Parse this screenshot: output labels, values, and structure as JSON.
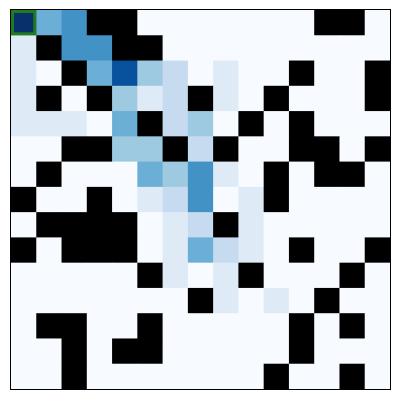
{
  "board": {
    "rows": 15,
    "cols": 15,
    "colors": {
      "wall": "#000000",
      "frame": "#000000",
      "agent_outline": "#1e7b1e",
      "heat_scale": [
        "#f7fbff",
        "#deebf7",
        "#c6dbef",
        "#9ecae1",
        "#6baed6",
        "#4292c6",
        "#2171b5",
        "#08519c",
        "#08306b"
      ]
    },
    "agent": {
      "row": 0,
      "col": 0
    },
    "heat_max": 8,
    "grid": [
      [
        8,
        4,
        5,
        -1,
        -1,
        0,
        0,
        0,
        0,
        0,
        0,
        0,
        -1,
        -1,
        0
      ],
      [
        1,
        -1,
        5,
        5,
        -1,
        -1,
        0,
        0,
        0,
        0,
        0,
        0,
        0,
        0,
        0
      ],
      [
        1,
        0,
        -1,
        4,
        7,
        3,
        2,
        0,
        1,
        0,
        0,
        -1,
        0,
        0,
        -1
      ],
      [
        1,
        -1,
        0,
        -1,
        3,
        1,
        2,
        -1,
        1,
        0,
        -1,
        0,
        0,
        0,
        -1
      ],
      [
        1,
        1,
        1,
        0,
        4,
        -1,
        2,
        3,
        0,
        -1,
        0,
        -1,
        0,
        0,
        0
      ],
      [
        0,
        0,
        -1,
        -1,
        3,
        3,
        -1,
        2,
        -1,
        0,
        0,
        -1,
        -1,
        0,
        -1
      ],
      [
        0,
        -1,
        0,
        0,
        0,
        4,
        3,
        5,
        1,
        0,
        -1,
        0,
        -1,
        -1,
        0
      ],
      [
        -1,
        0,
        0,
        -1,
        0,
        1,
        2,
        5,
        0,
        1,
        -1,
        0,
        0,
        0,
        0
      ],
      [
        0,
        -1,
        -1,
        -1,
        -1,
        0,
        1,
        2,
        -1,
        1,
        0,
        0,
        0,
        0,
        0
      ],
      [
        -1,
        0,
        -1,
        -1,
        -1,
        0,
        1,
        4,
        2,
        1,
        0,
        -1,
        0,
        0,
        -1
      ],
      [
        0,
        0,
        0,
        0,
        0,
        -1,
        1,
        0,
        1,
        -1,
        0,
        0,
        0,
        -1,
        0
      ],
      [
        0,
        0,
        0,
        0,
        0,
        0,
        0,
        -1,
        1,
        0,
        1,
        0,
        -1,
        0,
        0
      ],
      [
        0,
        -1,
        -1,
        0,
        0,
        -1,
        0,
        0,
        0,
        0,
        0,
        -1,
        0,
        -1,
        0
      ],
      [
        0,
        0,
        -1,
        0,
        -1,
        -1,
        0,
        0,
        0,
        0,
        0,
        -1,
        0,
        0,
        0
      ],
      [
        0,
        0,
        -1,
        0,
        0,
        0,
        0,
        0,
        0,
        0,
        -1,
        0,
        0,
        -1,
        0
      ]
    ]
  }
}
